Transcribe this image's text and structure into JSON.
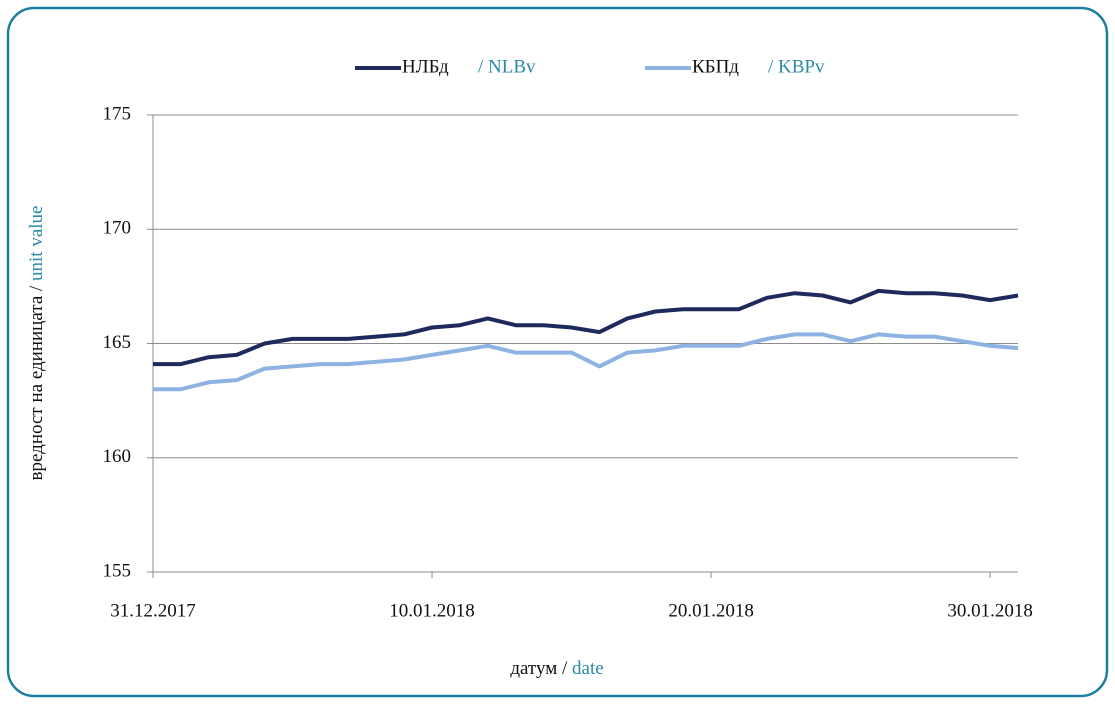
{
  "chart_data": {
    "type": "line",
    "x_label": {
      "text": "датум /",
      "translation": "date"
    },
    "y_label": {
      "text": "вредност на единицата /",
      "translation": "unit value"
    },
    "x": [
      "31.12.2017",
      "01.01.2018",
      "02.01.2018",
      "03.01.2018",
      "04.01.2018",
      "05.01.2018",
      "06.01.2018",
      "07.01.2018",
      "08.01.2018",
      "09.01.2018",
      "10.01.2018",
      "11.01.2018",
      "12.01.2018",
      "13.01.2018",
      "14.01.2018",
      "15.01.2018",
      "16.01.2018",
      "17.01.2018",
      "18.01.2018",
      "19.01.2018",
      "20.01.2018",
      "21.01.2018",
      "22.01.2018",
      "23.01.2018",
      "24.01.2018",
      "25.01.2018",
      "26.01.2018",
      "27.01.2018",
      "28.01.2018",
      "29.01.2018",
      "30.01.2018",
      "31.01.2018"
    ],
    "series": [
      {
        "name": "НЛБд",
        "translation": "/ NLBv",
        "color": "#1f2a5c",
        "values": [
          164.1,
          164.1,
          164.4,
          164.5,
          165.0,
          165.2,
          165.2,
          165.2,
          165.3,
          165.4,
          165.7,
          165.8,
          166.1,
          165.8,
          165.8,
          165.7,
          165.5,
          166.1,
          166.4,
          166.5,
          166.5,
          166.5,
          167.0,
          167.2,
          167.1,
          166.8,
          167.3,
          167.2,
          167.2,
          167.1,
          166.9,
          167.1
        ]
      },
      {
        "name": "КБПд",
        "translation": "/ KBPv",
        "color": "#8db3e2",
        "values": [
          163.0,
          163.0,
          163.3,
          163.4,
          163.9,
          164.0,
          164.1,
          164.1,
          164.2,
          164.3,
          164.5,
          164.7,
          164.9,
          164.6,
          164.6,
          164.6,
          164.0,
          164.6,
          164.7,
          164.9,
          164.9,
          164.9,
          165.2,
          165.4,
          165.4,
          165.1,
          165.4,
          165.3,
          165.3,
          165.1,
          164.9,
          164.8
        ]
      }
    ],
    "xlim": [
      "31.12.2017",
      "31.01.2018"
    ],
    "xticks": [
      "31.12.2017",
      "10.01.2018",
      "20.01.2018",
      "30.01.2018"
    ],
    "ylim": [
      155,
      175
    ],
    "yticks": [
      155,
      160,
      165,
      170,
      175
    ],
    "grid": true,
    "legend": "top"
  }
}
